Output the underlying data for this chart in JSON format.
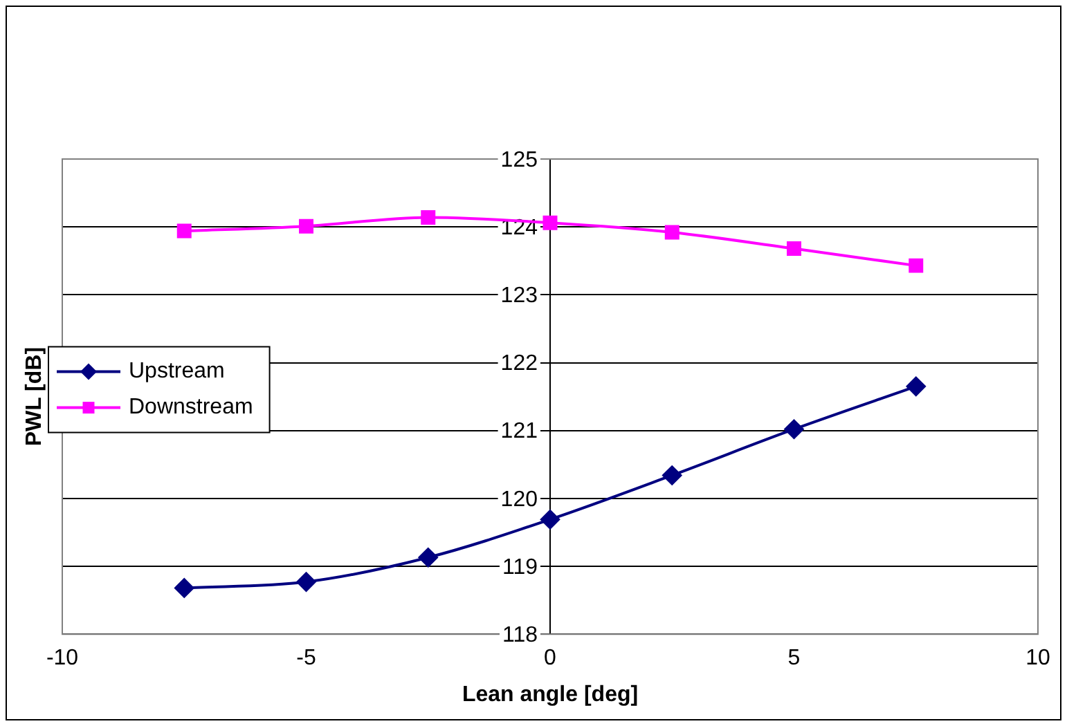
{
  "chart_data": {
    "type": "line",
    "xlabel": "Lean angle [deg]",
    "ylabel": "PWL [dB]",
    "x": [
      -7.5,
      -5,
      -2.5,
      0,
      2.5,
      5,
      7.5
    ],
    "series": [
      {
        "name": "Upstream",
        "color": "#000080",
        "marker": "diamond",
        "values": [
          118.68,
          118.77,
          119.13,
          119.69,
          120.34,
          121.02,
          121.65
        ]
      },
      {
        "name": "Downstream",
        "color": "#ff00ff",
        "marker": "square",
        "values": [
          123.94,
          124.01,
          124.14,
          124.06,
          123.92,
          123.68,
          123.43
        ]
      }
    ],
    "xlim": [
      -10,
      10
    ],
    "xticks": [
      -10,
      -5,
      0,
      5,
      10
    ],
    "ylim": [
      118,
      125
    ],
    "yticks": [
      118,
      119,
      120,
      121,
      122,
      123,
      124,
      125
    ],
    "grid": "y",
    "legend": "left"
  }
}
